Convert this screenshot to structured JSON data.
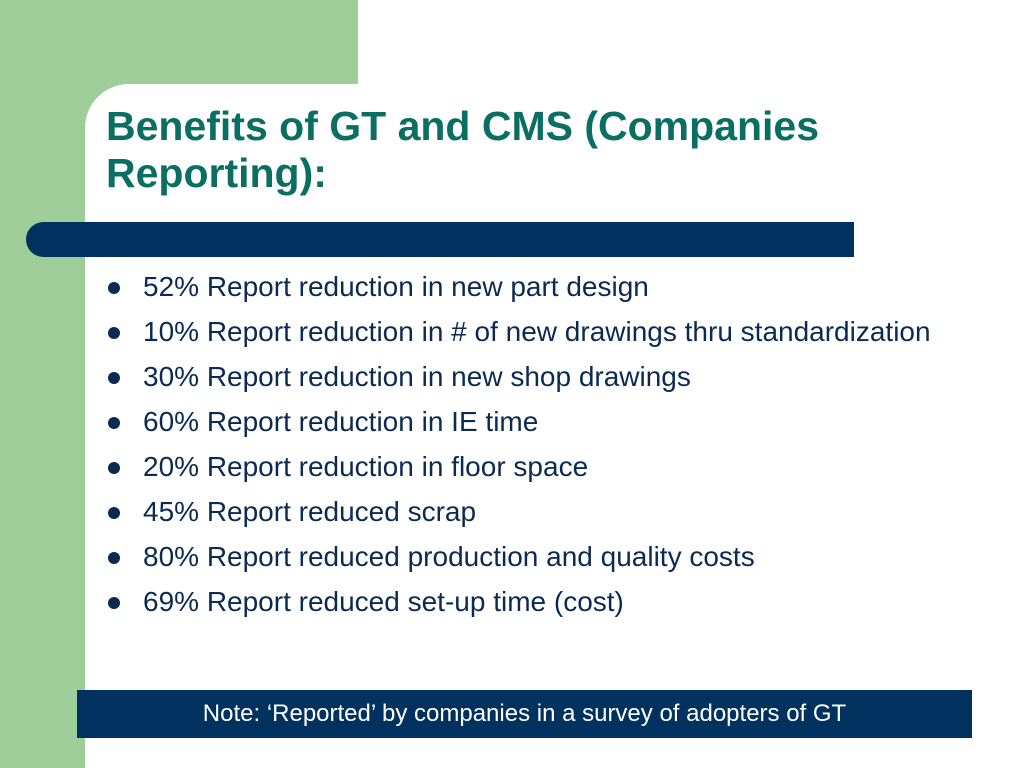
{
  "slide": {
    "title": "Benefits of GT and CMS (Companies Reporting):",
    "bullets": [
      "52% Report reduction in new part design",
      "10% Report reduction in # of new drawings thru standardization",
      "30% Report reduction in new shop drawings",
      "60% Report reduction in IE time",
      "20% Report reduction in floor space",
      "45% Report reduced scrap",
      "80% Report reduced production and quality costs",
      "69% Report reduced set-up time (cost)"
    ],
    "note": "Note: ‘Reported’ by companies in a survey of adopters of GT"
  },
  "colors": {
    "green_block": "#9fcd9a",
    "title_text": "#0b6e63",
    "navy": "#00315f",
    "body_text": "#0a2a52"
  }
}
